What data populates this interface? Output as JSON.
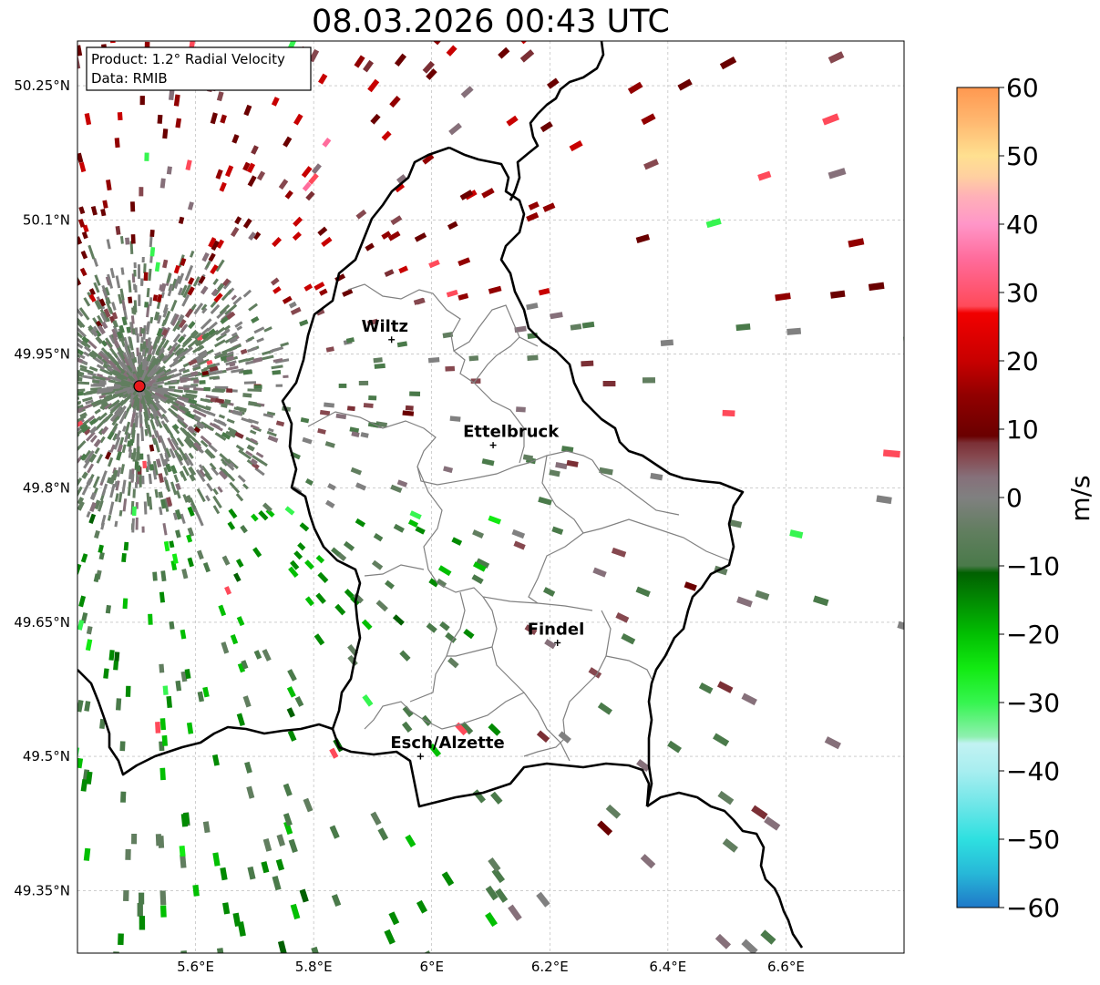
{
  "title": "08.03.2026 00:43 UTC",
  "info_box": {
    "product": "Product: 1.2° Radial Velocity",
    "source": "Data: RMIB"
  },
  "map": {
    "lon_range": [
      5.4,
      6.8
    ],
    "lat_range": [
      49.28,
      50.3
    ],
    "lon_ticks": [
      {
        "value": 5.6,
        "label": "5.6°E"
      },
      {
        "value": 5.8,
        "label": "5.8°E"
      },
      {
        "value": 6.0,
        "label": "6°E"
      },
      {
        "value": 6.2,
        "label": "6.2°E"
      },
      {
        "value": 6.4,
        "label": "6.4°E"
      },
      {
        "value": 6.6,
        "label": "6.6°E"
      }
    ],
    "lat_ticks": [
      {
        "value": 49.35,
        "label": "49.35°N"
      },
      {
        "value": 49.5,
        "label": "49.5°N"
      },
      {
        "value": 49.65,
        "label": "49.65°N"
      },
      {
        "value": 49.8,
        "label": "49.8°N"
      },
      {
        "value": 49.95,
        "label": "49.95°N"
      },
      {
        "value": 50.1,
        "label": "50.1°N"
      },
      {
        "value": 50.25,
        "label": "50.25°N"
      }
    ],
    "gridlines": true,
    "radar_site": {
      "lon": 5.505,
      "lat": 49.914,
      "color": "#e8191c"
    },
    "cities": [
      {
        "name": "Wiltz",
        "lon": 5.932,
        "lat": 49.966
      },
      {
        "name": "Ettelbruck",
        "lon": 6.104,
        "lat": 49.848
      },
      {
        "name": "Findel",
        "lon": 6.213,
        "lat": 49.627
      },
      {
        "name": "Esch/Alzette",
        "lon": 5.981,
        "lat": 49.5
      }
    ]
  },
  "colorbar": {
    "unit": "m/s",
    "min": -60,
    "max": 60,
    "ticks": [
      {
        "value": 60,
        "label": "60"
      },
      {
        "value": 50,
        "label": "50"
      },
      {
        "value": 40,
        "label": "40"
      },
      {
        "value": 30,
        "label": "30"
      },
      {
        "value": 20,
        "label": "20"
      },
      {
        "value": 10,
        "label": "10"
      },
      {
        "value": 0,
        "label": "0"
      },
      {
        "value": -10,
        "label": "−10"
      },
      {
        "value": -20,
        "label": "−20"
      },
      {
        "value": -30,
        "label": "−30"
      },
      {
        "value": -40,
        "label": "−40"
      },
      {
        "value": -50,
        "label": "−50"
      },
      {
        "value": -60,
        "label": "−60"
      }
    ],
    "stops": [
      {
        "value": -60,
        "color": "#1f78c8"
      },
      {
        "value": -55,
        "color": "#27b8d8"
      },
      {
        "value": -50,
        "color": "#2ee0e0"
      },
      {
        "value": -45,
        "color": "#6ee6e8"
      },
      {
        "value": -40,
        "color": "#a8eef0"
      },
      {
        "value": -36,
        "color": "#c2f2f2"
      },
      {
        "value": -35,
        "color": "#8ff0b0"
      },
      {
        "value": -30,
        "color": "#36f550"
      },
      {
        "value": -25,
        "color": "#12ea12"
      },
      {
        "value": -20,
        "color": "#02bf02"
      },
      {
        "value": -15,
        "color": "#028a02"
      },
      {
        "value": -11,
        "color": "#016001"
      },
      {
        "value": -10,
        "color": "#4a7a4a"
      },
      {
        "value": -5,
        "color": "#617e5f"
      },
      {
        "value": 0,
        "color": "#808080"
      },
      {
        "value": 3,
        "color": "#86707a"
      },
      {
        "value": 6,
        "color": "#86484f"
      },
      {
        "value": 8,
        "color": "#7b2f35"
      },
      {
        "value": 9,
        "color": "#6a0000"
      },
      {
        "value": 15,
        "color": "#920000"
      },
      {
        "value": 20,
        "color": "#c80000"
      },
      {
        "value": 27,
        "color": "#f20000"
      },
      {
        "value": 28,
        "color": "#ff4a5a"
      },
      {
        "value": 35,
        "color": "#ff6c9c"
      },
      {
        "value": 40,
        "color": "#ff96c8"
      },
      {
        "value": 44,
        "color": "#ffb0b8"
      },
      {
        "value": 47,
        "color": "#ffd0a0"
      },
      {
        "value": 50,
        "color": "#ffe090"
      },
      {
        "value": 55,
        "color": "#ffb870"
      },
      {
        "value": 60,
        "color": "#ff9850"
      }
    ]
  }
}
